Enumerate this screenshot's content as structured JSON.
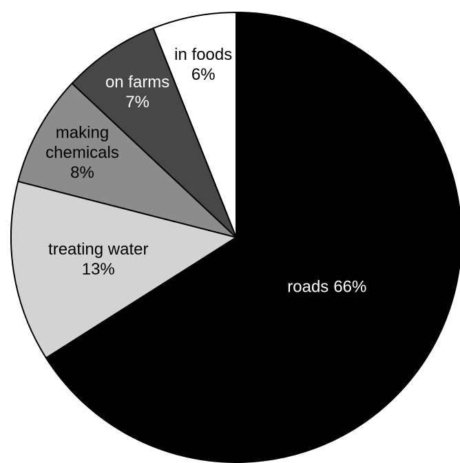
{
  "chart_data": {
    "type": "pie",
    "categories": [
      "roads",
      "treating water",
      "making chemicals",
      "on farms",
      "in foods"
    ],
    "values": [
      66,
      13,
      8,
      7,
      6
    ],
    "value_labels": [
      "66%",
      "13%",
      "8%",
      "7%",
      "6%"
    ],
    "colors": [
      "#000000",
      "#d3d3d3",
      "#8c8c8c",
      "#474747",
      "#ffffff"
    ]
  }
}
